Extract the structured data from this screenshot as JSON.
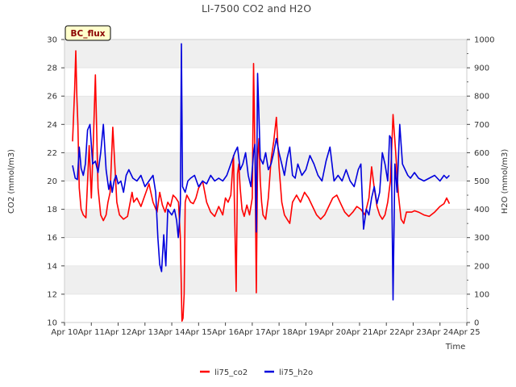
{
  "colors": {
    "co2": "#ff0000",
    "h2o": "#0000dd",
    "band": "#efefef",
    "grid": "#dddddd",
    "badge_bg": "#ffffcc"
  },
  "badge": "BC_flux",
  "chart_data": {
    "type": "line",
    "title": "LI-7500 CO2 and H2O",
    "xlabel": "Time",
    "ylabel": "CO2 (mmol/m3)",
    "y2label": "H2O (mmol/m3)",
    "xlim": [
      10,
      25
    ],
    "ylim": [
      10,
      30
    ],
    "y2lim": [
      0,
      1000
    ],
    "x_ticks": [
      10,
      11,
      12,
      13,
      14,
      15,
      16,
      17,
      18,
      19,
      20,
      21,
      22,
      23,
      24,
      25
    ],
    "x_tick_labels": [
      "Apr 10",
      "Apr 11",
      "Apr 12",
      "Apr 13",
      "Apr 14",
      "Apr 15",
      "Apr 16",
      "Apr 17",
      "Apr 18",
      "Apr 19",
      "Apr 20",
      "Apr 21",
      "Apr 22",
      "Apr 23",
      "Apr 24",
      "Apr 25"
    ],
    "y_ticks": [
      10,
      12,
      14,
      16,
      18,
      20,
      22,
      24,
      26,
      28,
      30
    ],
    "y_tick_labels": [
      "10",
      "12",
      "14",
      "16",
      "18",
      "20",
      "22",
      "24",
      "26",
      "28",
      "30"
    ],
    "y2_ticks": [
      0,
      100,
      200,
      300,
      400,
      500,
      600,
      700,
      800,
      900,
      1000
    ],
    "y2_tick_labels": [
      "0",
      "100",
      "200",
      "300",
      "400",
      "500",
      "600",
      "700",
      "800",
      "900",
      "1000"
    ],
    "legend_position": "bottom-center",
    "series": [
      {
        "name": "li75_co2",
        "axis": "left",
        "x": [
          10.3,
          10.38,
          10.42,
          10.46,
          10.5,
          10.55,
          10.62,
          10.7,
          10.8,
          10.92,
          11.0,
          11.08,
          11.15,
          11.25,
          11.35,
          11.45,
          11.55,
          11.62,
          11.7,
          11.8,
          11.95,
          12.05,
          12.2,
          12.35,
          12.45,
          12.52,
          12.58,
          12.7,
          12.85,
          13.0,
          13.15,
          13.3,
          13.45,
          13.55,
          13.65,
          13.75,
          13.85,
          13.95,
          14.05,
          14.15,
          14.25,
          14.32,
          14.38,
          14.42,
          14.46,
          14.5,
          14.56,
          14.62,
          14.7,
          14.8,
          14.9,
          15.0,
          15.15,
          15.3,
          15.45,
          15.6,
          15.75,
          15.9,
          16.0,
          16.1,
          16.2,
          16.3,
          16.4,
          16.45,
          16.5,
          16.55,
          16.62,
          16.7,
          16.8,
          16.9,
          17.0,
          17.05,
          17.1,
          17.15,
          17.2,
          17.25,
          17.3,
          17.35,
          17.4,
          17.5,
          17.6,
          17.7,
          17.8,
          17.9,
          18.0,
          18.1,
          18.2,
          18.3,
          18.4,
          18.5,
          18.65,
          18.8,
          18.95,
          19.1,
          19.25,
          19.4,
          19.55,
          19.7,
          19.85,
          20.0,
          20.15,
          20.3,
          20.45,
          20.6,
          20.75,
          20.9,
          21.05,
          21.2,
          21.35,
          21.45,
          21.55,
          21.65,
          21.75,
          21.85,
          21.95,
          22.05,
          22.15,
          22.25,
          22.35,
          22.45,
          22.55,
          22.65,
          22.75,
          22.85,
          22.95,
          23.05,
          23.2,
          23.4,
          23.6,
          23.8,
          24.0,
          24.15,
          24.25,
          24.35
        ],
        "values": [
          22.8,
          26.5,
          29.2,
          26.0,
          24.0,
          19.5,
          18.0,
          17.6,
          17.4,
          22.5,
          18.8,
          23.0,
          27.5,
          19.5,
          17.6,
          17.2,
          17.6,
          18.5,
          19.2,
          23.8,
          18.5,
          17.6,
          17.3,
          17.5,
          18.5,
          19.2,
          18.5,
          18.8,
          18.2,
          19.0,
          19.8,
          18.5,
          17.8,
          19.2,
          18.3,
          17.8,
          18.5,
          18.2,
          19.0,
          18.8,
          18.5,
          16.0,
          10.1,
          10.3,
          12.0,
          18.5,
          19.0,
          18.8,
          18.5,
          18.4,
          18.8,
          19.5,
          20.0,
          18.5,
          17.8,
          17.5,
          18.2,
          17.6,
          18.8,
          18.5,
          19.0,
          21.8,
          12.2,
          20.5,
          21.2,
          19.5,
          18.0,
          17.5,
          18.3,
          17.6,
          18.8,
          28.3,
          22.0,
          12.1,
          21.5,
          23.0,
          20.0,
          18.5,
          17.6,
          17.3,
          18.8,
          21.5,
          22.8,
          24.5,
          21.0,
          18.5,
          17.6,
          17.3,
          17.0,
          18.5,
          19.0,
          18.5,
          19.2,
          18.8,
          18.2,
          17.6,
          17.3,
          17.6,
          18.2,
          18.8,
          19.0,
          18.4,
          17.8,
          17.5,
          17.8,
          18.2,
          18.0,
          17.6,
          18.8,
          21.0,
          19.5,
          18.2,
          17.6,
          17.3,
          17.6,
          18.5,
          20.0,
          24.7,
          22.0,
          19.0,
          17.3,
          17.0,
          17.8,
          17.8,
          17.8,
          17.9,
          17.8,
          17.6,
          17.5,
          17.8,
          18.2,
          18.4,
          18.8,
          18.4
        ]
      },
      {
        "name": "li75_h2o",
        "axis": "right",
        "x": [
          10.3,
          10.4,
          10.48,
          10.55,
          10.62,
          10.7,
          10.78,
          10.86,
          10.95,
          11.05,
          11.15,
          11.25,
          11.35,
          11.45,
          11.55,
          11.65,
          11.72,
          11.78,
          11.85,
          11.92,
          12.0,
          12.1,
          12.2,
          12.3,
          12.4,
          12.55,
          12.7,
          12.85,
          13.0,
          13.15,
          13.3,
          13.4,
          13.48,
          13.55,
          13.62,
          13.7,
          13.78,
          13.85,
          13.92,
          14.0,
          14.1,
          14.18,
          14.24,
          14.28,
          14.32,
          14.36,
          14.4,
          14.5,
          14.6,
          14.7,
          14.85,
          15.0,
          15.15,
          15.3,
          15.45,
          15.6,
          15.75,
          15.9,
          16.05,
          16.2,
          16.35,
          16.45,
          16.55,
          16.65,
          16.75,
          16.85,
          16.95,
          17.05,
          17.1,
          17.15,
          17.2,
          17.3,
          17.4,
          17.5,
          17.6,
          17.7,
          17.8,
          17.9,
          18.0,
          18.1,
          18.2,
          18.3,
          18.4,
          18.5,
          18.6,
          18.7,
          18.85,
          19.0,
          19.15,
          19.3,
          19.45,
          19.6,
          19.75,
          19.9,
          20.05,
          20.2,
          20.35,
          20.5,
          20.65,
          20.8,
          20.95,
          21.05,
          21.15,
          21.25,
          21.35,
          21.45,
          21.55,
          21.65,
          21.75,
          21.85,
          21.95,
          22.05,
          22.12,
          22.18,
          22.25,
          22.32,
          22.4,
          22.5,
          22.6,
          22.7,
          22.8,
          22.9,
          23.05,
          23.2,
          23.4,
          23.6,
          23.8,
          24.0,
          24.15,
          24.25,
          24.35
        ],
        "values": [
          555,
          510,
          505,
          620,
          545,
          520,
          560,
          680,
          700,
          560,
          570,
          530,
          600,
          700,
          540,
          470,
          500,
          460,
          500,
          520,
          490,
          500,
          460,
          520,
          540,
          510,
          500,
          520,
          480,
          500,
          520,
          460,
          300,
          205,
          180,
          310,
          200,
          400,
          390,
          380,
          400,
          360,
          300,
          350,
          420,
          985,
          480,
          460,
          500,
          510,
          520,
          480,
          500,
          490,
          520,
          500,
          510,
          500,
          520,
          560,
          600,
          620,
          540,
          560,
          600,
          520,
          480,
          600,
          630,
          320,
          880,
          580,
          560,
          600,
          540,
          560,
          600,
          650,
          600,
          560,
          520,
          580,
          620,
          520,
          510,
          560,
          520,
          540,
          590,
          560,
          520,
          500,
          570,
          620,
          500,
          520,
          500,
          540,
          500,
          480,
          540,
          560,
          330,
          400,
          380,
          440,
          480,
          420,
          460,
          600,
          560,
          500,
          660,
          650,
          80,
          560,
          460,
          700,
          560,
          540,
          520,
          510,
          530,
          510,
          500,
          510,
          520,
          500,
          520,
          510,
          520
        ]
      }
    ]
  }
}
